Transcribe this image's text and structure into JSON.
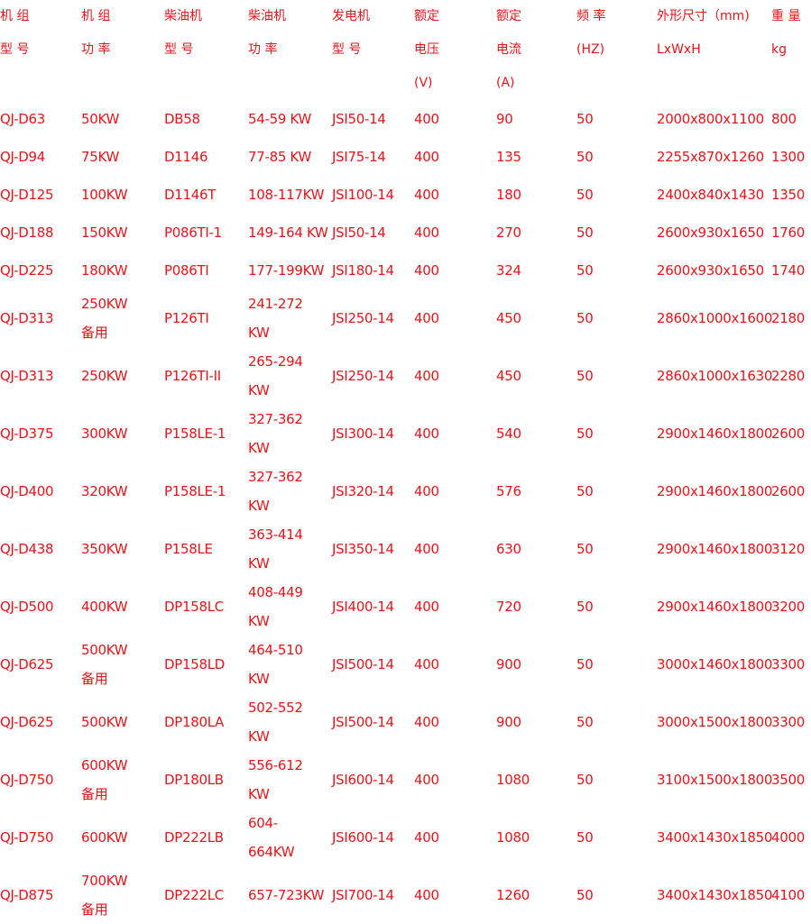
{
  "headers": [
    [
      "机 组",
      "型 号"
    ],
    [
      "机 组",
      "功 率"
    ],
    [
      "柴油机",
      "型 号"
    ],
    [
      "柴油机",
      "功 率"
    ],
    [
      "发电机",
      "型 号"
    ],
    [
      "额定",
      "电压",
      "(V)"
    ],
    [
      "额定",
      "电流",
      "(A)"
    ],
    [
      "频 率",
      "(HZ)"
    ],
    [
      "外形尺寸（mm)",
      "LxWxH"
    ],
    [
      "重 量",
      "kg"
    ]
  ],
  "rows": [
    {
      "model": "QJ-D63",
      "power": [
        "50KW"
      ],
      "engine": "DB58",
      "engine_power": [
        "54-59 KW"
      ],
      "alternator": "JSI50-14",
      "voltage": "400",
      "current": "90",
      "freq": "50",
      "dims": "2000x800x1100",
      "weight": "800"
    },
    {
      "model": "QJ-D94",
      "power": [
        "75KW"
      ],
      "engine": "D1146",
      "engine_power": [
        "77-85 KW"
      ],
      "alternator": "JSI75-14",
      "voltage": "400",
      "current": "135",
      "freq": "50",
      "dims": "2255x870x1260",
      "weight": "1300"
    },
    {
      "model": "QJ-D125",
      "power": [
        "100KW"
      ],
      "engine": "D1146T",
      "engine_power": [
        "108-117KW"
      ],
      "alternator": "JSI100-14",
      "voltage": "400",
      "current": "180",
      "freq": "50",
      "dims": "2400x840x1430",
      "weight": "1350"
    },
    {
      "model": "QJ-D188",
      "power": [
        "150KW"
      ],
      "engine": "P086TI-1",
      "engine_power": [
        "149-164 KW"
      ],
      "alternator": "JSI50-14",
      "voltage": "400",
      "current": "270",
      "freq": "50",
      "dims": "2600x930x1650",
      "weight": "1760"
    },
    {
      "model": "QJ-D225",
      "power": [
        "180KW"
      ],
      "engine": "P086TI",
      "engine_power": [
        "177-199KW"
      ],
      "alternator": "JSI180-14",
      "voltage": "400",
      "current": "324",
      "freq": "50",
      "dims": "2600x930x1650",
      "weight": "1740"
    },
    {
      "model": "QJ-D313",
      "power": [
        "250KW",
        "备用"
      ],
      "engine": "P126TI",
      "engine_power": [
        "241-272",
        "KW"
      ],
      "alternator": "JSI250-14",
      "voltage": "400",
      "current": "450",
      "freq": "50",
      "dims": "2860x1000x1600",
      "weight": "2180"
    },
    {
      "model": "QJ-D313",
      "power": [
        "250KW"
      ],
      "engine": "P126TI-II",
      "engine_power": [
        "265-294",
        "KW"
      ],
      "alternator": "JSI250-14",
      "voltage": "400",
      "current": "450",
      "freq": "50",
      "dims": "2860x1000x1630",
      "weight": "2280"
    },
    {
      "model": "QJ-D375",
      "power": [
        "300KW"
      ],
      "engine": "P158LE-1",
      "engine_power": [
        "327-362",
        "KW"
      ],
      "alternator": "JSI300-14",
      "voltage": "400",
      "current": "540",
      "freq": "50",
      "dims": "2900x1460x1800",
      "weight": "2600"
    },
    {
      "model": "QJ-D400",
      "power": [
        "320KW"
      ],
      "engine": "P158LE-1",
      "engine_power": [
        "327-362",
        "KW"
      ],
      "alternator": "JSI320-14",
      "voltage": "400",
      "current": "576",
      "freq": "50",
      "dims": "2900x1460x1800",
      "weight": "2600"
    },
    {
      "model": "QJ-D438",
      "power": [
        "350KW"
      ],
      "engine": "P158LE",
      "engine_power": [
        "363-414",
        "KW"
      ],
      "alternator": "JSI350-14",
      "voltage": "400",
      "current": "630",
      "freq": "50",
      "dims": "2900x1460x1800",
      "weight": "3120"
    },
    {
      "model": "QJ-D500",
      "power": [
        "400KW"
      ],
      "engine": "DP158LC",
      "engine_power": [
        "408-449",
        "KW"
      ],
      "alternator": "JSI400-14",
      "voltage": "400",
      "current": "720",
      "freq": "50",
      "dims": "2900x1460x1800",
      "weight": "3200"
    },
    {
      "model": "QJ-D625",
      "power": [
        "500KW",
        "备用"
      ],
      "engine": "DP158LD",
      "engine_power": [
        "464-510",
        "KW"
      ],
      "alternator": "JSI500-14",
      "voltage": "400",
      "current": "900",
      "freq": "50",
      "dims": "3000x1460x1800",
      "weight": "3300"
    },
    {
      "model": "QJ-D625",
      "power": [
        "500KW"
      ],
      "engine": "DP180LA",
      "engine_power": [
        "502-552",
        "KW"
      ],
      "alternator": "JSI500-14",
      "voltage": "400",
      "current": "900",
      "freq": "50",
      "dims": "3000x1500x1800",
      "weight": "3300"
    },
    {
      "model": "QJ-D750",
      "power": [
        "600KW",
        "备用"
      ],
      "engine": "DP180LB",
      "engine_power": [
        "556-612",
        "KW"
      ],
      "alternator": "JSI600-14",
      "voltage": "400",
      "current": "1080",
      "freq": "50",
      "dims": "3100x1500x1800",
      "weight": "3500"
    },
    {
      "model": "QJ-D750",
      "power": [
        "600KW"
      ],
      "engine": "DP222LB",
      "engine_power": [
        "604-",
        "664KW"
      ],
      "alternator": "JSI600-14",
      "voltage": "400",
      "current": "1080",
      "freq": "50",
      "dims": "3400x1430x1850",
      "weight": "4000"
    },
    {
      "model": "QJ-D875",
      "power": [
        "700KW",
        "备用"
      ],
      "engine": "DP222LC",
      "engine_power": [
        "657-723KW"
      ],
      "alternator": "JSI700-14",
      "voltage": "400",
      "current": "1260",
      "freq": "50",
      "dims": "3400x1430x1850",
      "weight": "4100"
    }
  ]
}
